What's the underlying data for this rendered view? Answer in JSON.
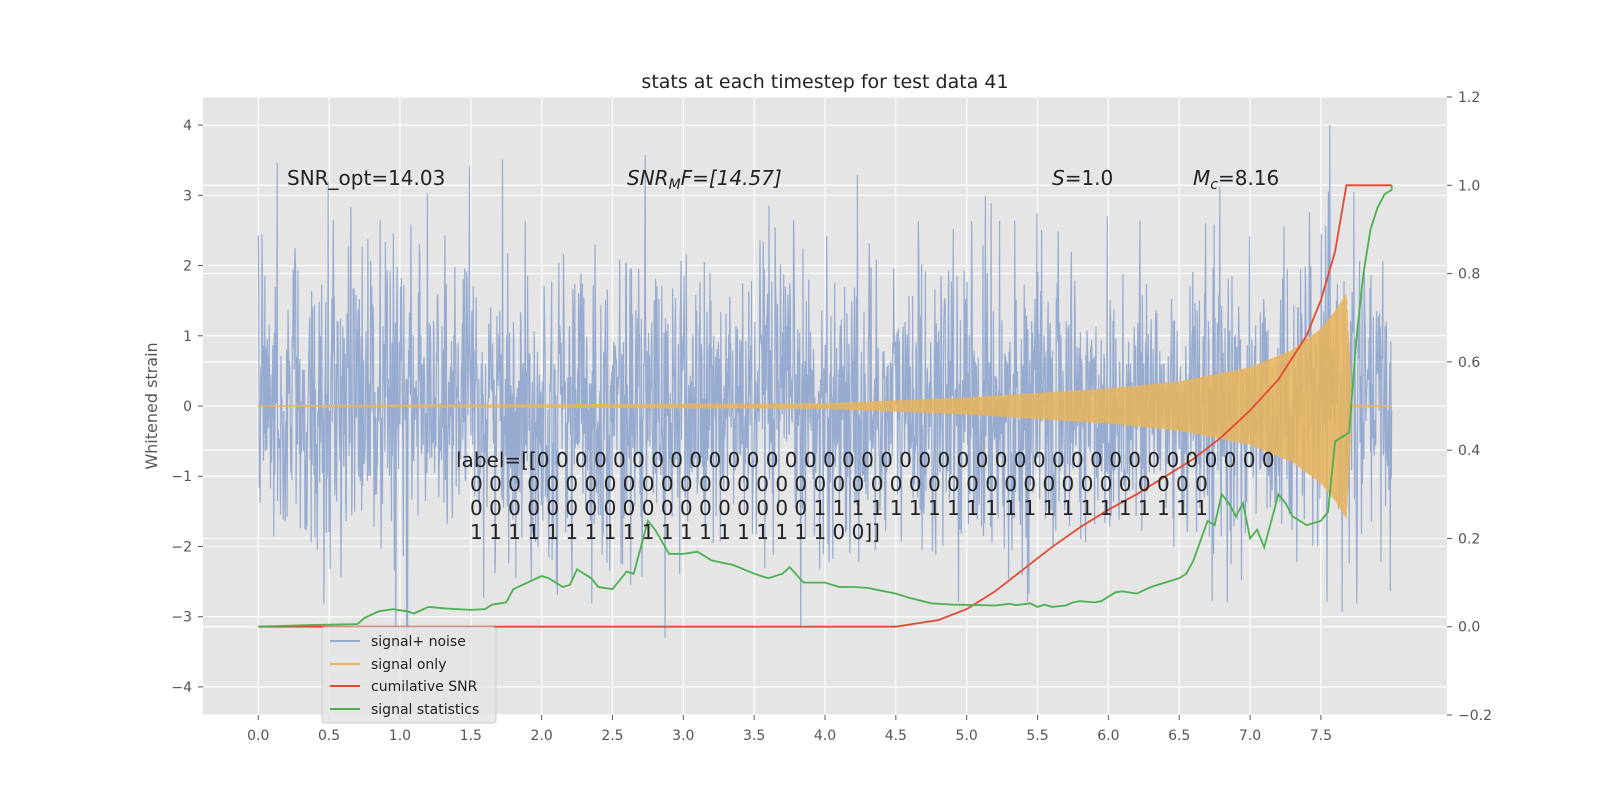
{
  "chart_data": {
    "type": "line",
    "title": "stats at each timestep for test data 41",
    "ylabel": "Whitened strain",
    "xlabel": "",
    "xlim": [
      -0.39,
      8.39
    ],
    "ylim": [
      -4.4,
      4.4
    ],
    "y2lim": [
      -0.2,
      1.2
    ],
    "grid": true,
    "legend_position": "lower-left",
    "x_ticks": [
      "0.0",
      "0.5",
      "1.0",
      "1.5",
      "2.0",
      "2.5",
      "3.0",
      "3.5",
      "4.0",
      "4.5",
      "5.0",
      "5.5",
      "6.0",
      "6.5",
      "7.0",
      "7.5"
    ],
    "y_ticks": [
      "4",
      "3",
      "2",
      "1",
      "0",
      "−1",
      "−2",
      "−3",
      "−4"
    ],
    "y2_ticks": [
      "1.2",
      "1.0",
      "0.8",
      "0.6",
      "0.4",
      "0.2",
      "0.0",
      "−0.2"
    ],
    "annotations": {
      "snr_opt": "SNR_opt=14.03",
      "snr_mf_main": "SNR",
      "snr_mf_sub": "M",
      "snr_mf_rest": "F=[14.57]",
      "s_main": "S",
      "s_rest": "=1.0",
      "mc_main": "M",
      "mc_sub": "c",
      "mc_rest": "=8.16",
      "label_lines": [
        "label=[[0 0 0 0 0 0 0 0 0 0 0 0 0 0 0 0 0 0 0 0 0 0 0 0 0 0 0 0 0 0 0 0 0 0 0 0 0 0 0",
        "0 0 0 0 0 0 0 0 0 0 0 0 0 0 0 0 0 0 0 0 0 0 0 0 0 0 0 0 0 0 0 0 0 0 0 0 0 0 0",
        "0 0 0 0 0 0 0 0 0 0 0 0 0 0 0 0 0 0 1 1 1 1 1 1 1 1 1 1 1 1 1 1 1 1 1 1 1 1 1",
        "1 1 1 1 1 1 1 1 1 1 1 1 1 1 1 1 1 1 1 0 0]]"
      ]
    },
    "series": [
      {
        "name": "signal+ noise",
        "color": "#92a8cf",
        "axis": "left",
        "x_range": [
          0.0,
          8.0
        ],
        "approx_std": 1.0,
        "approx_max": 4.0,
        "approx_min": -4.0
      },
      {
        "name": "signal only",
        "color": "#e8b45a",
        "axis": "left",
        "x_range": [
          0.0,
          8.0
        ],
        "peak_amplitude": 1.6,
        "peak_x": 7.68,
        "envelope": [
          [
            0.0,
            0.01
          ],
          [
            4.0,
            0.04
          ],
          [
            5.0,
            0.12
          ],
          [
            6.0,
            0.25
          ],
          [
            6.5,
            0.35
          ],
          [
            7.0,
            0.55
          ],
          [
            7.3,
            0.8
          ],
          [
            7.5,
            1.1
          ],
          [
            7.6,
            1.35
          ],
          [
            7.68,
            1.6
          ],
          [
            7.72,
            0.05
          ],
          [
            8.0,
            0.02
          ]
        ]
      },
      {
        "name": "cumilative SNR",
        "color": "#e24a33",
        "axis": "right",
        "points": [
          [
            0.0,
            0.0
          ],
          [
            4.5,
            0.0
          ],
          [
            4.8,
            0.015
          ],
          [
            5.0,
            0.04
          ],
          [
            5.2,
            0.08
          ],
          [
            5.4,
            0.13
          ],
          [
            5.6,
            0.18
          ],
          [
            5.8,
            0.225
          ],
          [
            6.0,
            0.265
          ],
          [
            6.2,
            0.3
          ],
          [
            6.4,
            0.34
          ],
          [
            6.6,
            0.38
          ],
          [
            6.8,
            0.43
          ],
          [
            7.0,
            0.49
          ],
          [
            7.2,
            0.56
          ],
          [
            7.4,
            0.66
          ],
          [
            7.5,
            0.74
          ],
          [
            7.6,
            0.85
          ],
          [
            7.68,
            1.0
          ],
          [
            8.0,
            1.0
          ]
        ]
      },
      {
        "name": "signal statistics",
        "color": "#4caf50",
        "axis": "right",
        "points": [
          [
            0.0,
            0.0
          ],
          [
            0.2,
            0.002
          ],
          [
            0.4,
            0.004
          ],
          [
            0.7,
            0.006
          ],
          [
            0.75,
            0.02
          ],
          [
            0.85,
            0.035
          ],
          [
            0.95,
            0.04
          ],
          [
            1.05,
            0.035
          ],
          [
            1.1,
            0.03
          ],
          [
            1.2,
            0.045
          ],
          [
            1.3,
            0.042
          ],
          [
            1.4,
            0.04
          ],
          [
            1.5,
            0.038
          ],
          [
            1.6,
            0.04
          ],
          [
            1.65,
            0.05
          ],
          [
            1.75,
            0.055
          ],
          [
            1.8,
            0.085
          ],
          [
            1.9,
            0.1
          ],
          [
            2.0,
            0.115
          ],
          [
            2.05,
            0.11
          ],
          [
            2.15,
            0.09
          ],
          [
            2.2,
            0.095
          ],
          [
            2.25,
            0.13
          ],
          [
            2.35,
            0.11
          ],
          [
            2.4,
            0.09
          ],
          [
            2.5,
            0.085
          ],
          [
            2.6,
            0.125
          ],
          [
            2.65,
            0.12
          ],
          [
            2.75,
            0.24
          ],
          [
            2.8,
            0.22
          ],
          [
            2.9,
            0.165
          ],
          [
            3.0,
            0.165
          ],
          [
            3.1,
            0.17
          ],
          [
            3.2,
            0.15
          ],
          [
            3.35,
            0.14
          ],
          [
            3.5,
            0.12
          ],
          [
            3.6,
            0.11
          ],
          [
            3.7,
            0.12
          ],
          [
            3.75,
            0.135
          ],
          [
            3.85,
            0.1
          ],
          [
            4.0,
            0.1
          ],
          [
            4.1,
            0.09
          ],
          [
            4.2,
            0.09
          ],
          [
            4.3,
            0.088
          ],
          [
            4.5,
            0.075
          ],
          [
            4.6,
            0.065
          ],
          [
            4.75,
            0.053
          ],
          [
            4.9,
            0.05
          ],
          [
            5.1,
            0.049
          ],
          [
            5.2,
            0.048
          ],
          [
            5.3,
            0.052
          ],
          [
            5.35,
            0.049
          ],
          [
            5.45,
            0.053
          ],
          [
            5.5,
            0.045
          ],
          [
            5.55,
            0.05
          ],
          [
            5.6,
            0.045
          ],
          [
            5.7,
            0.048
          ],
          [
            5.75,
            0.055
          ],
          [
            5.8,
            0.058
          ],
          [
            5.9,
            0.055
          ],
          [
            5.95,
            0.058
          ],
          [
            6.05,
            0.078
          ],
          [
            6.1,
            0.08
          ],
          [
            6.2,
            0.075
          ],
          [
            6.3,
            0.09
          ],
          [
            6.4,
            0.1
          ],
          [
            6.5,
            0.11
          ],
          [
            6.55,
            0.12
          ],
          [
            6.6,
            0.15
          ],
          [
            6.7,
            0.24
          ],
          [
            6.75,
            0.23
          ],
          [
            6.8,
            0.3
          ],
          [
            6.85,
            0.28
          ],
          [
            6.9,
            0.25
          ],
          [
            6.95,
            0.28
          ],
          [
            7.0,
            0.2
          ],
          [
            7.05,
            0.22
          ],
          [
            7.1,
            0.18
          ],
          [
            7.15,
            0.24
          ],
          [
            7.2,
            0.3
          ],
          [
            7.25,
            0.28
          ],
          [
            7.3,
            0.25
          ],
          [
            7.4,
            0.23
          ],
          [
            7.5,
            0.24
          ],
          [
            7.55,
            0.26
          ],
          [
            7.6,
            0.42
          ],
          [
            7.7,
            0.44
          ],
          [
            7.75,
            0.65
          ],
          [
            7.8,
            0.8
          ],
          [
            7.85,
            0.9
          ],
          [
            7.9,
            0.95
          ],
          [
            7.95,
            0.98
          ],
          [
            8.0,
            0.99
          ],
          [
            8.0,
            1.0
          ]
        ]
      }
    ]
  }
}
